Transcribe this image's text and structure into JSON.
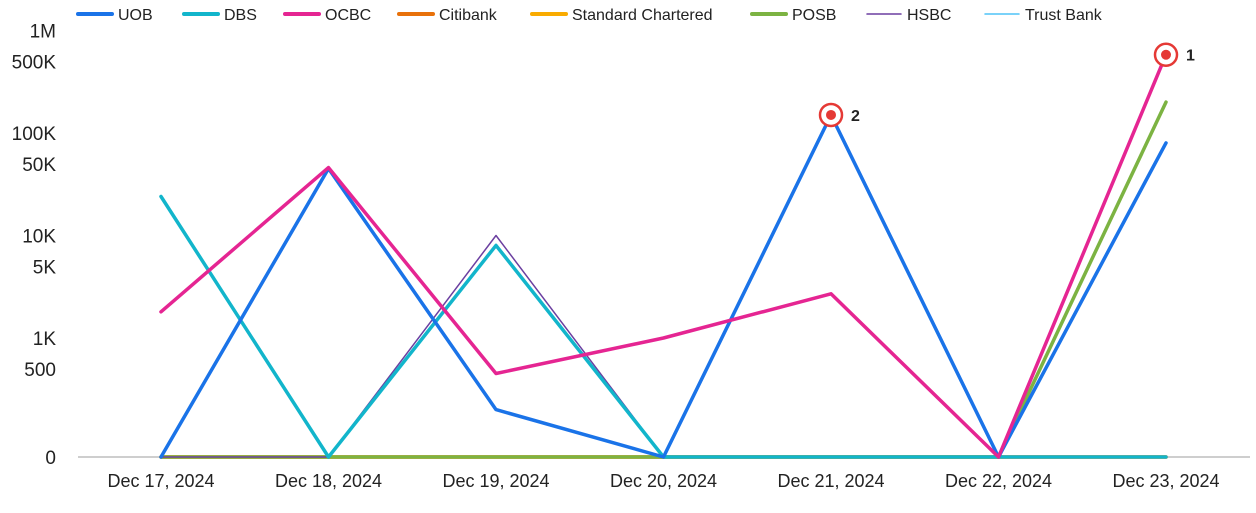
{
  "chart_data": {
    "type": "line",
    "title": "",
    "xlabel": "",
    "ylabel": "",
    "y_scale": "log",
    "grid": false,
    "legend_position": "top",
    "categories": [
      "Dec 17, 2024",
      "Dec 18, 2024",
      "Dec 19, 2024",
      "Dec 20, 2024",
      "Dec 21, 2024",
      "Dec 22, 2024",
      "Dec 23, 2024"
    ],
    "y_ticks": [
      {
        "value": 1000000,
        "label": "1M"
      },
      {
        "value": 500000,
        "label": "500K"
      },
      {
        "value": 100000,
        "label": "100K"
      },
      {
        "value": 50000,
        "label": "50K"
      },
      {
        "value": 10000,
        "label": "10K"
      },
      {
        "value": 5000,
        "label": "5K"
      },
      {
        "value": 1000,
        "label": "1K"
      },
      {
        "value": 500,
        "label": "500"
      },
      {
        "value": 0,
        "label": "0"
      }
    ],
    "series": [
      {
        "name": "UOB",
        "color": "#1a73e8",
        "values": [
          0,
          45000,
          200,
          0,
          150000,
          0,
          80000
        ]
      },
      {
        "name": "DBS",
        "color": "#12b5cb",
        "values": [
          24000,
          0,
          8000,
          0,
          0,
          0,
          0
        ]
      },
      {
        "name": "OCBC",
        "color": "#e52592",
        "values": [
          1800,
          46000,
          450,
          1000,
          2700,
          0,
          580000
        ]
      },
      {
        "name": "Citibank",
        "color": "#e8710a",
        "values": [
          0,
          0,
          0,
          0,
          0,
          0,
          0
        ]
      },
      {
        "name": "Standard Chartered",
        "color": "#f9ab00",
        "values": [
          0,
          0,
          0,
          0,
          0,
          0,
          0
        ]
      },
      {
        "name": "POSB",
        "color": "#7cb342",
        "values": [
          0,
          0,
          0,
          0,
          0,
          0,
          200000
        ]
      },
      {
        "name": "HSBC",
        "color": "#6b3fa0",
        "values": [
          0,
          0,
          10000,
          0,
          0,
          0,
          0
        ]
      },
      {
        "name": "Trust Bank",
        "color": "#4fc3f7",
        "values": [
          0,
          0,
          0,
          0,
          0,
          0,
          0
        ]
      }
    ],
    "annotations": [
      {
        "label": "1",
        "series": "OCBC",
        "category": "Dec 23, 2024",
        "value": 580000
      },
      {
        "label": "2",
        "series": "UOB",
        "category": "Dec 21, 2024",
        "value": 150000
      }
    ]
  }
}
